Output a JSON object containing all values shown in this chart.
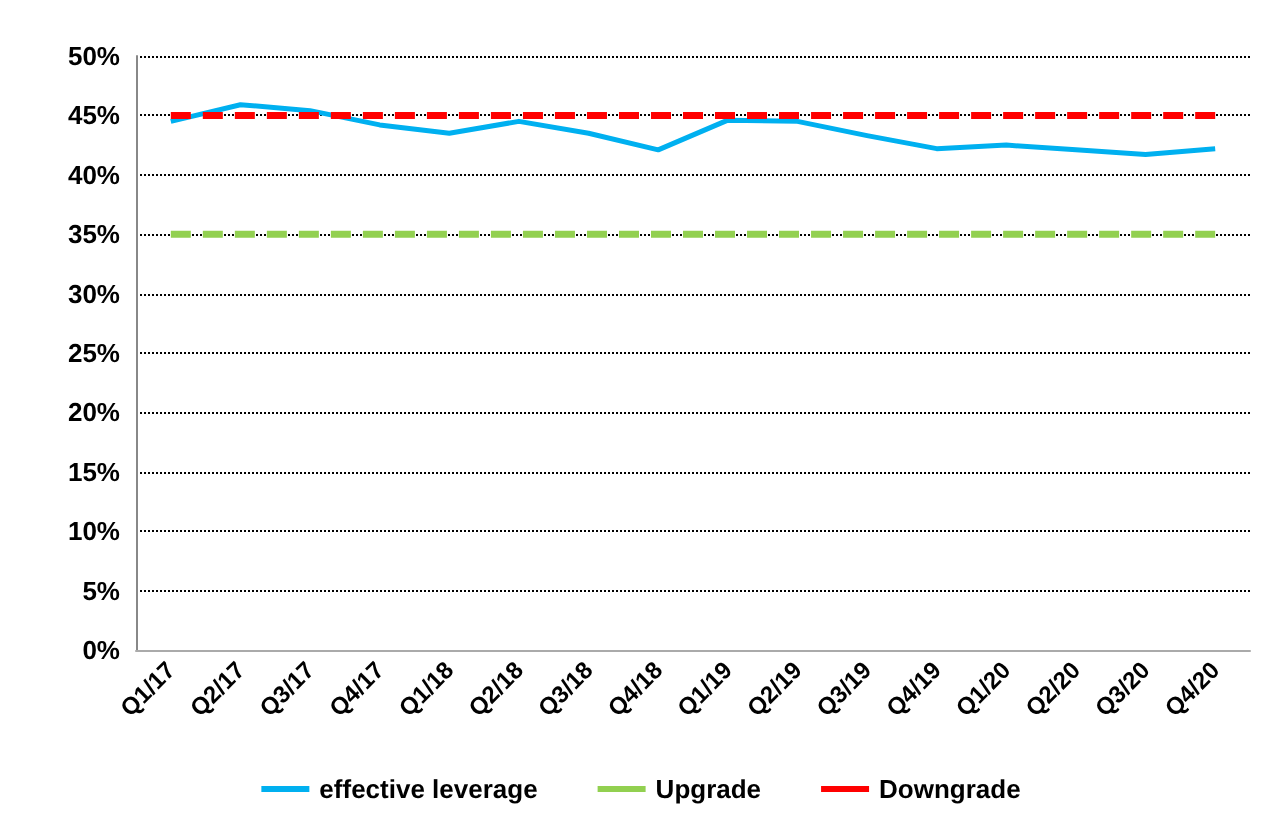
{
  "chart_data": {
    "type": "line",
    "categories": [
      "Q1/17",
      "Q2/17",
      "Q3/17",
      "Q4/17",
      "Q1/18",
      "Q2/18",
      "Q3/18",
      "Q4/18",
      "Q1/19",
      "Q2/19",
      "Q3/19",
      "Q4/19",
      "Q1/20",
      "Q2/20",
      "Q3/20",
      "Q4/20"
    ],
    "series": [
      {
        "name": "effective leverage",
        "color": "#00b0f0",
        "line_style": "solid",
        "values": [
          44.5,
          45.9,
          45.4,
          44.2,
          43.5,
          44.5,
          43.5,
          42.1,
          44.6,
          44.5,
          43.3,
          42.2,
          42.5,
          42.1,
          41.7,
          42.2
        ]
      },
      {
        "name": "Upgrade",
        "color": "#92d050",
        "line_style": "dashed",
        "values": [
          35,
          35,
          35,
          35,
          35,
          35,
          35,
          35,
          35,
          35,
          35,
          35,
          35,
          35,
          35,
          35
        ]
      },
      {
        "name": "Downgrade",
        "color": "#ff0000",
        "line_style": "dashed",
        "values": [
          45,
          45,
          45,
          45,
          45,
          45,
          45,
          45,
          45,
          45,
          45,
          45,
          45,
          45,
          45,
          45
        ]
      }
    ],
    "ylim": [
      0,
      50
    ],
    "yticks": [
      {
        "value": 0,
        "label": "0%"
      },
      {
        "value": 5,
        "label": "5%"
      },
      {
        "value": 10,
        "label": "10%"
      },
      {
        "value": 15,
        "label": "15%"
      },
      {
        "value": 20,
        "label": "20%"
      },
      {
        "value": 25,
        "label": "25%"
      },
      {
        "value": 30,
        "label": "30%"
      },
      {
        "value": 35,
        "label": "35%"
      },
      {
        "value": 40,
        "label": "40%"
      },
      {
        "value": 45,
        "label": "45%"
      },
      {
        "value": 50,
        "label": "50%"
      }
    ],
    "grid": "y",
    "legend": "bottom",
    "marker": "none"
  }
}
